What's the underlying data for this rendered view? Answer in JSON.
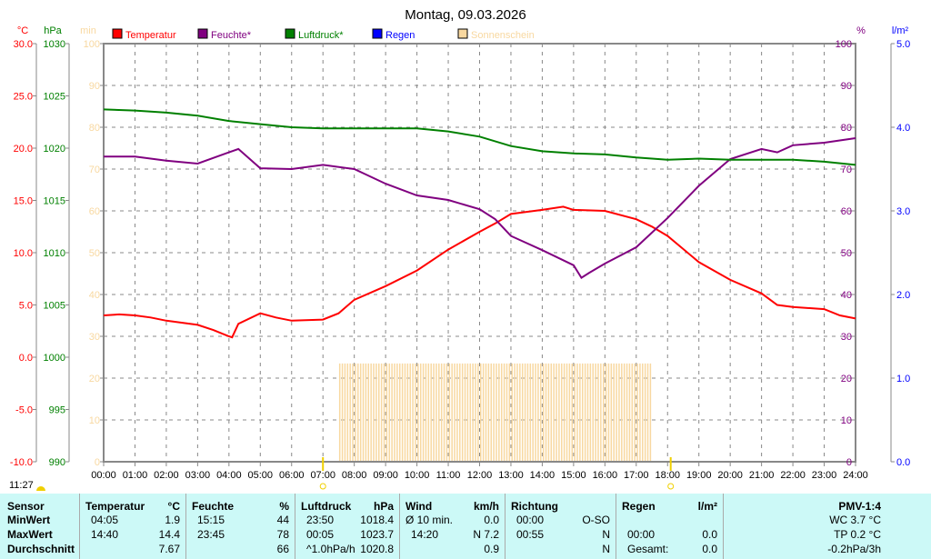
{
  "chart_data": {
    "type": "line",
    "title": "Montag, 09.03.2026",
    "x_ticks": [
      "00:00",
      "01:00",
      "02:00",
      "03:00",
      "04:00",
      "05:00",
      "06:00",
      "07:00",
      "08:00",
      "09:00",
      "10:00",
      "11:00",
      "12:00",
      "13:00",
      "14:00",
      "15:00",
      "16:00",
      "17:00",
      "18:00",
      "19:00",
      "20:00",
      "21:00",
      "22:00",
      "23:00",
      "24:00"
    ],
    "axes": {
      "temp": {
        "label": "°C",
        "range": [
          -10,
          30
        ],
        "ticks": [
          "30.0",
          "25.0",
          "20.0",
          "15.0",
          "10.0",
          "5.0",
          "0.0",
          "-5.0",
          "-10.0"
        ],
        "color": "#ff0000"
      },
      "pressure": {
        "label": "hPa",
        "range": [
          990,
          1030
        ],
        "ticks": [
          "1030",
          "1025",
          "1020",
          "1015",
          "1010",
          "1005",
          "1000",
          "995",
          "990"
        ],
        "color": "#008000"
      },
      "sun": {
        "label": "min",
        "range": [
          0,
          100
        ],
        "ticks": [
          "100",
          "90",
          "80",
          "70",
          "60",
          "50",
          "40",
          "30",
          "20",
          "10",
          "0"
        ],
        "color": "#f8d8a0"
      },
      "humidity": {
        "label": "%",
        "range": [
          0,
          100
        ],
        "ticks": [
          "100",
          "90",
          "80",
          "70",
          "60",
          "50",
          "40",
          "30",
          "20",
          "10",
          "0"
        ],
        "color": "#800080"
      },
      "rain": {
        "label": "l/m²",
        "range": [
          0,
          5
        ],
        "ticks": [
          "5.0",
          "4.0",
          "3.0",
          "2.0",
          "1.0",
          "0.0"
        ],
        "color": "#0000ff"
      }
    },
    "legend": [
      {
        "name": "Temperatur",
        "color": "#ff0000"
      },
      {
        "name": "Feuchte*",
        "color": "#800080"
      },
      {
        "name": "Luftdruck*",
        "color": "#008000"
      },
      {
        "name": "Regen",
        "color": "#0000ff"
      },
      {
        "name": "Sonnenschein",
        "color": "#f8d8a0"
      }
    ],
    "series": [
      {
        "name": "Temperatur",
        "axis": "temp",
        "color": "#ff0000",
        "x": [
          0,
          0.5,
          1,
          1.5,
          2,
          3,
          3.5,
          4,
          4.1,
          4.3,
          5,
          5.5,
          6,
          7,
          7.5,
          8,
          9,
          10,
          11,
          12,
          12.5,
          13,
          14,
          14.67,
          15,
          16,
          17,
          17.5,
          18,
          19,
          20,
          21,
          21.5,
          22,
          23,
          23.5,
          24
        ],
        "y": [
          4.0,
          4.1,
          4.0,
          3.8,
          3.5,
          3.1,
          2.6,
          2.0,
          1.9,
          3.2,
          4.2,
          3.8,
          3.5,
          3.6,
          4.2,
          5.5,
          6.8,
          8.3,
          10.3,
          12.0,
          12.8,
          13.7,
          14.1,
          14.4,
          14.1,
          14.0,
          13.2,
          12.5,
          11.6,
          9.1,
          7.4,
          6.1,
          5.0,
          4.8,
          4.6,
          4.0,
          3.7
        ]
      },
      {
        "name": "Feuchte",
        "axis": "humidity",
        "color": "#800080",
        "x": [
          0,
          1,
          2,
          3,
          4,
          4.3,
          5,
          6,
          7,
          8,
          9,
          10,
          11,
          12,
          12.5,
          13,
          14,
          15,
          15.25,
          15.5,
          16,
          17,
          18,
          19,
          20,
          21,
          21.5,
          22,
          23,
          24
        ],
        "y": [
          73,
          73,
          72,
          71.3,
          74,
          74.8,
          70.2,
          70,
          71,
          70,
          66.5,
          63.7,
          62.6,
          60.4,
          58,
          54,
          50.6,
          47,
          44,
          45.2,
          47.4,
          51.3,
          58.3,
          66,
          72.4,
          74.8,
          74,
          75.7,
          76.3,
          77.4
        ]
      },
      {
        "name": "Luftdruck",
        "axis": "pressure",
        "color": "#008000",
        "x": [
          0,
          1,
          2,
          3,
          4,
          5,
          6,
          7,
          8,
          9,
          10,
          11,
          12,
          13,
          14,
          15,
          16,
          17,
          18,
          19,
          20,
          21,
          22,
          23,
          24
        ],
        "y": [
          1023.7,
          1023.6,
          1023.4,
          1023.1,
          1022.6,
          1022.3,
          1022.0,
          1021.9,
          1021.9,
          1021.9,
          1021.9,
          1021.6,
          1021.1,
          1020.2,
          1019.7,
          1019.5,
          1019.4,
          1019.1,
          1018.9,
          1019.0,
          1018.9,
          1018.9,
          1018.9,
          1018.7,
          1018.4
        ]
      },
      {
        "name": "Sonnenschein",
        "axis": "sun",
        "color": "#f8d8a0",
        "from": 7.5,
        "to": 17.5,
        "value": 5
      }
    ],
    "markers": [
      {
        "time": 7.0,
        "label": ""
      },
      {
        "time": 18.1,
        "label": ""
      }
    ],
    "sunrise_label": "11:27"
  },
  "table": {
    "cols": [
      {
        "rows": [
          "Sensor",
          "MinWert",
          "MaxWert",
          "Durchschnitt"
        ]
      },
      {
        "head": "Temperatur",
        "unit": "°C",
        "left": [
          "04:05",
          "14:40",
          ""
        ],
        "right": [
          "1.9",
          "14.4",
          "7.67"
        ]
      },
      {
        "head": "Feuchte",
        "unit": "%",
        "left": [
          "15:15",
          "23:45",
          ""
        ],
        "right": [
          "44",
          "78",
          "66"
        ]
      },
      {
        "head": "Luftdruck",
        "unit": "hPa",
        "left": [
          "23:50",
          "00:05",
          "^1.0hPa/h"
        ],
        "right": [
          "1018.4",
          "1023.7",
          "1020.8"
        ]
      },
      {
        "head": "Wind",
        "unit": "km/h",
        "left": [
          "Ø 10 min.",
          "14:20",
          ""
        ],
        "right": [
          "0.0",
          "N 7.2",
          "0.9"
        ]
      },
      {
        "head": "Richtung",
        "unit": "",
        "left": [
          "00:00",
          "00:55",
          ""
        ],
        "right": [
          "O-SO",
          "N",
          "N"
        ]
      },
      {
        "head": "Regen",
        "unit": "l/m²",
        "left": [
          "",
          "00:00",
          "Gesamt:"
        ],
        "right": [
          "",
          "0.0",
          "0.0"
        ]
      },
      {
        "head": "PMV-1:4",
        "lines": [
          "WC 3.7 °C",
          "TP 0.2 °C",
          "-0.2hPa/3h"
        ]
      }
    ]
  }
}
